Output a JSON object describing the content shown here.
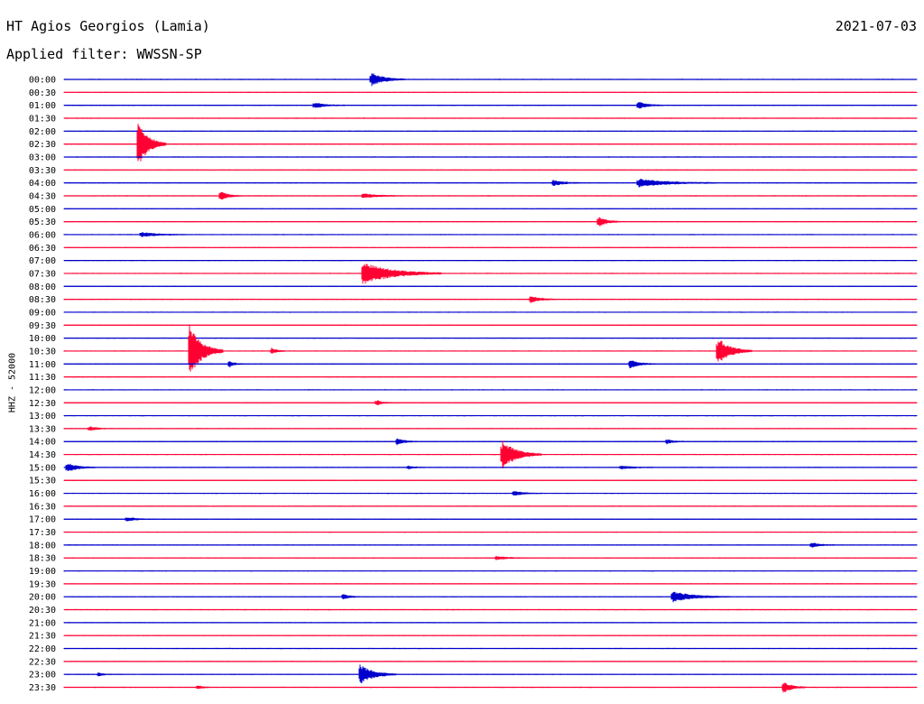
{
  "header": {
    "station": "HT Agios Georgios (Lamia)",
    "date": "2021-07-03",
    "filter_label": "Applied filter: WWSSN-SP"
  },
  "chart_data": {
    "type": "line",
    "chart_kind": "helicorder",
    "ylabel": "HHZ - 52000",
    "colors": {
      "blue": "#0000cc",
      "red": "#ff0033"
    },
    "color_cycle": [
      "blue",
      "red"
    ],
    "rows": [
      "00:00",
      "00:30",
      "01:00",
      "01:30",
      "02:00",
      "02:30",
      "03:00",
      "03:30",
      "04:00",
      "04:30",
      "05:00",
      "05:30",
      "06:00",
      "06:30",
      "07:00",
      "07:30",
      "08:00",
      "08:30",
      "09:00",
      "09:30",
      "10:00",
      "10:30",
      "11:00",
      "11:30",
      "12:00",
      "12:30",
      "13:00",
      "13:30",
      "14:00",
      "14:30",
      "15:00",
      "15:30",
      "16:00",
      "16:30",
      "17:00",
      "17:30",
      "18:00",
      "18:30",
      "19:00",
      "19:30",
      "20:00",
      "20:30",
      "21:00",
      "21:30",
      "22:00",
      "22:30",
      "23:00",
      "23:30"
    ],
    "minutes_per_row": 30,
    "events": [
      {
        "row": "00:00",
        "minute": 10.8,
        "amplitude": 1.2,
        "duration": 1.2
      },
      {
        "row": "01:00",
        "minute": 8.8,
        "amplitude": 0.5,
        "duration": 1.1
      },
      {
        "row": "01:00",
        "minute": 20.2,
        "amplitude": 0.6,
        "duration": 0.9
      },
      {
        "row": "02:30",
        "minute": 2.6,
        "amplitude": 4.0,
        "duration": 1.0
      },
      {
        "row": "04:00",
        "minute": 17.2,
        "amplitude": 0.5,
        "duration": 1.0
      },
      {
        "row": "04:00",
        "minute": 20.2,
        "amplitude": 0.7,
        "duration": 2.8
      },
      {
        "row": "04:30",
        "minute": 5.5,
        "amplitude": 0.7,
        "duration": 0.8
      },
      {
        "row": "04:30",
        "minute": 10.5,
        "amplitude": 0.4,
        "duration": 1.4
      },
      {
        "row": "05:30",
        "minute": 18.8,
        "amplitude": 0.9,
        "duration": 0.8
      },
      {
        "row": "06:00",
        "minute": 2.7,
        "amplitude": 0.4,
        "duration": 1.6
      },
      {
        "row": "07:30",
        "minute": 10.5,
        "amplitude": 1.9,
        "duration": 2.8
      },
      {
        "row": "08:30",
        "minute": 16.4,
        "amplitude": 0.6,
        "duration": 0.9
      },
      {
        "row": "10:30",
        "minute": 4.4,
        "amplitude": 4.5,
        "duration": 1.2
      },
      {
        "row": "10:30",
        "minute": 7.3,
        "amplitude": 0.5,
        "duration": 0.5
      },
      {
        "row": "10:30",
        "minute": 23.0,
        "amplitude": 2.3,
        "duration": 1.2
      },
      {
        "row": "11:00",
        "minute": 5.8,
        "amplitude": 0.6,
        "duration": 0.5
      },
      {
        "row": "11:00",
        "minute": 19.9,
        "amplitude": 0.7,
        "duration": 0.9
      },
      {
        "row": "12:30",
        "minute": 11.0,
        "amplitude": 0.5,
        "duration": 0.5
      },
      {
        "row": "13:30",
        "minute": 0.9,
        "amplitude": 0.4,
        "duration": 0.6
      },
      {
        "row": "14:00",
        "minute": 11.7,
        "amplitude": 0.6,
        "duration": 0.7
      },
      {
        "row": "14:00",
        "minute": 21.2,
        "amplitude": 0.4,
        "duration": 0.6
      },
      {
        "row": "14:30",
        "minute": 15.4,
        "amplitude": 2.5,
        "duration": 1.4
      },
      {
        "row": "15:00",
        "minute": 0.1,
        "amplitude": 0.8,
        "duration": 1.0
      },
      {
        "row": "15:00",
        "minute": 12.1,
        "amplitude": 0.3,
        "duration": 0.6
      },
      {
        "row": "15:00",
        "minute": 19.6,
        "amplitude": 0.3,
        "duration": 1.2
      },
      {
        "row": "16:00",
        "minute": 15.8,
        "amplitude": 0.4,
        "duration": 1.0
      },
      {
        "row": "17:00",
        "minute": 2.2,
        "amplitude": 0.3,
        "duration": 1.0
      },
      {
        "row": "18:00",
        "minute": 26.3,
        "amplitude": 0.4,
        "duration": 0.8
      },
      {
        "row": "18:30",
        "minute": 15.2,
        "amplitude": 0.3,
        "duration": 1.1
      },
      {
        "row": "20:00",
        "minute": 9.8,
        "amplitude": 0.5,
        "duration": 0.6
      },
      {
        "row": "20:00",
        "minute": 21.4,
        "amplitude": 0.9,
        "duration": 2.0
      },
      {
        "row": "23:00",
        "minute": 10.4,
        "amplitude": 1.7,
        "duration": 1.3
      },
      {
        "row": "23:00",
        "minute": 1.2,
        "amplitude": 0.3,
        "duration": 0.5
      },
      {
        "row": "23:30",
        "minute": 25.3,
        "amplitude": 1.0,
        "duration": 0.8
      },
      {
        "row": "23:30",
        "minute": 4.7,
        "amplitude": 0.3,
        "duration": 0.5
      }
    ]
  }
}
